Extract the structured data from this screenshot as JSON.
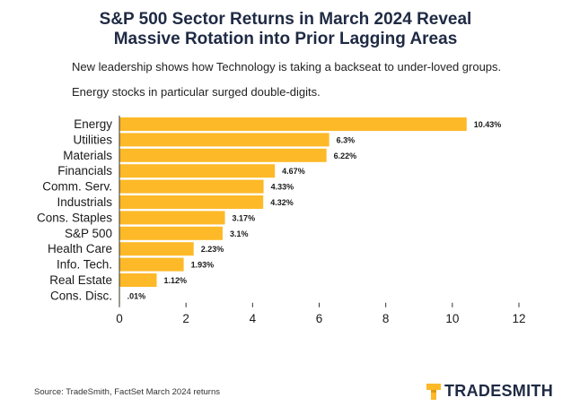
{
  "title_line1": "S&P 500 Sector Returns in March 2024 Reveal",
  "title_line2": "Massive Rotation into Prior Lagging Areas",
  "subtitle_line1": "New leadership shows how Technology is taking a backseat to under-loved groups.",
  "subtitle_line2": "Energy stocks in particular surged double-digits.",
  "source": "Source: TradeSmith, FactSet March 2024 returns",
  "logo_text": "TRADESMITH",
  "colors": {
    "bar": "#FDB927",
    "axis": "#333333",
    "title": "#1f2a44"
  },
  "chart_data": {
    "type": "bar",
    "orientation": "horizontal",
    "categories": [
      "Energy",
      "Utilities",
      "Materials",
      "Financials",
      "Comm. Serv.",
      "Industrials",
      "Cons. Staples",
      "S&P 500",
      "Health Care",
      "Info. Tech.",
      "Real Estate",
      "Cons. Disc."
    ],
    "values": [
      10.43,
      6.3,
      6.22,
      4.67,
      4.33,
      4.32,
      3.17,
      3.1,
      2.23,
      1.93,
      1.12,
      0.01
    ],
    "value_labels": [
      "10.43%",
      "6.3%",
      "6.22%",
      "4.67%",
      "4.33%",
      "4.32%",
      "3.17%",
      "3.1%",
      "2.23%",
      "1.93%",
      "1.12%",
      ".01%"
    ],
    "xlim": [
      0,
      12
    ],
    "xticks": [
      0,
      2,
      4,
      6,
      8,
      10,
      12
    ],
    "grid": false,
    "legend": "none"
  }
}
